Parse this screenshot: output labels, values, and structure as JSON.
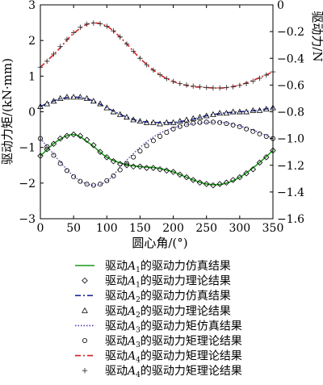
{
  "chart_data": {
    "type": "line",
    "xlabel": "圆心角/(°)",
    "ylabel_left": "驱动力矩/(kN·mm)",
    "ylabel_right": "驱动力/N",
    "xlim": [
      0,
      350
    ],
    "ylim_left": [
      -3,
      3
    ],
    "ylim_right": [
      -1.6,
      0
    ],
    "xticks": [
      "0",
      "50",
      "100",
      "150",
      "200",
      "250",
      "300",
      "350"
    ],
    "yticks_left": [
      "−3",
      "−2",
      "−1",
      "0",
      "1",
      "2",
      "3"
    ],
    "yticks_right": [
      "−1.6",
      "−1.4",
      "−1.2",
      "−1.0",
      "−0.8",
      "−0.6",
      "−0.4",
      "−0.2",
      "0"
    ],
    "grid": false,
    "legend_position": "below",
    "series": [
      {
        "name_prefix": "驱动",
        "name_var": "A",
        "name_sub": "1",
        "name_suffix": "的驱动力仿真结果",
        "axis": "right",
        "style": "line",
        "color": "#1a9a1a",
        "marker": "none",
        "x": [
          0,
          25,
          50,
          75,
          100,
          125,
          150,
          175,
          200,
          225,
          250,
          275,
          300,
          325,
          350
        ],
        "y": [
          -1.13,
          -1.02,
          -0.97,
          -1.04,
          -1.14,
          -1.19,
          -1.21,
          -1.22,
          -1.25,
          -1.3,
          -1.34,
          -1.34,
          -1.29,
          -1.2,
          -1.09
        ]
      },
      {
        "name_prefix": "驱动",
        "name_var": "A",
        "name_sub": "1",
        "name_suffix": "的驱动力理论结果",
        "axis": "right",
        "style": "markers",
        "color": "#000000",
        "marker": "diamond",
        "x": [
          0,
          10,
          20,
          30,
          40,
          50,
          60,
          70,
          80,
          90,
          100,
          110,
          120,
          130,
          140,
          150,
          160,
          170,
          180,
          190,
          200,
          210,
          220,
          230,
          240,
          250,
          260,
          270,
          280,
          290,
          300,
          310,
          320,
          330,
          340,
          350
        ],
        "y": [
          -1.13,
          -1.08,
          -1.04,
          -1.0,
          -0.98,
          -0.97,
          -0.98,
          -1.01,
          -1.05,
          -1.1,
          -1.14,
          -1.17,
          -1.19,
          -1.2,
          -1.21,
          -1.21,
          -1.22,
          -1.22,
          -1.23,
          -1.24,
          -1.25,
          -1.27,
          -1.29,
          -1.31,
          -1.33,
          -1.34,
          -1.35,
          -1.34,
          -1.33,
          -1.31,
          -1.29,
          -1.26,
          -1.23,
          -1.18,
          -1.14,
          -1.09
        ]
      },
      {
        "name_prefix": "驱动",
        "name_var": "A",
        "name_sub": "2",
        "name_suffix": "的驱动力仿真结果",
        "axis": "right",
        "style": "dashdot",
        "color": "#1f2a9a",
        "marker": "none",
        "x": [
          0,
          25,
          50,
          75,
          100,
          125,
          150,
          175,
          200,
          225,
          250,
          275,
          300,
          325,
          350
        ],
        "y": [
          -0.76,
          -0.71,
          -0.69,
          -0.71,
          -0.77,
          -0.83,
          -0.87,
          -0.88,
          -0.88,
          -0.86,
          -0.83,
          -0.81,
          -0.8,
          -0.79,
          -0.77
        ]
      },
      {
        "name_prefix": "驱动",
        "name_var": "A",
        "name_sub": "2",
        "name_suffix": "的驱动力理论结果",
        "axis": "right",
        "style": "markers",
        "color": "#000000",
        "marker": "triangle",
        "x": [
          0,
          10,
          20,
          30,
          40,
          50,
          60,
          70,
          80,
          90,
          100,
          110,
          120,
          130,
          140,
          150,
          160,
          170,
          180,
          190,
          200,
          210,
          220,
          230,
          240,
          250,
          260,
          270,
          280,
          290,
          300,
          310,
          320,
          330,
          340,
          350
        ],
        "y": [
          -0.76,
          -0.74,
          -0.72,
          -0.7,
          -0.69,
          -0.69,
          -0.69,
          -0.7,
          -0.72,
          -0.74,
          -0.77,
          -0.8,
          -0.82,
          -0.84,
          -0.86,
          -0.87,
          -0.88,
          -0.88,
          -0.89,
          -0.88,
          -0.88,
          -0.87,
          -0.86,
          -0.85,
          -0.84,
          -0.83,
          -0.82,
          -0.81,
          -0.81,
          -0.8,
          -0.8,
          -0.8,
          -0.79,
          -0.79,
          -0.78,
          -0.77
        ]
      },
      {
        "name_prefix": "驱动",
        "name_var": "A",
        "name_sub": "3",
        "name_suffix": "的驱动力矩仿真结果",
        "axis": "left",
        "style": "dotted",
        "color": "#5a3aa8",
        "marker": "none",
        "x": [
          0,
          25,
          50,
          75,
          100,
          125,
          150,
          175,
          200,
          225,
          250,
          275,
          300,
          325,
          350
        ],
        "y": [
          -0.75,
          -1.3,
          -1.8,
          -2.05,
          -1.95,
          -1.45,
          -1.0,
          -0.65,
          -0.45,
          -0.35,
          -0.3,
          -0.3,
          -0.4,
          -0.55,
          -0.75
        ]
      },
      {
        "name_prefix": "驱动",
        "name_var": "A",
        "name_sub": "3",
        "name_suffix": "的驱动力矩理论结果",
        "axis": "left",
        "style": "markers",
        "color": "#000000",
        "marker": "circle",
        "x": [
          0,
          10,
          20,
          30,
          40,
          50,
          60,
          70,
          80,
          90,
          100,
          110,
          120,
          130,
          140,
          150,
          160,
          170,
          180,
          190,
          200,
          210,
          220,
          230,
          240,
          250,
          260,
          270,
          280,
          290,
          300,
          310,
          320,
          330,
          340,
          350
        ],
        "y": [
          -0.75,
          -0.98,
          -1.22,
          -1.45,
          -1.65,
          -1.82,
          -1.95,
          -2.03,
          -2.06,
          -2.03,
          -1.93,
          -1.8,
          -1.63,
          -1.45,
          -1.27,
          -1.1,
          -0.95,
          -0.81,
          -0.69,
          -0.58,
          -0.48,
          -0.41,
          -0.36,
          -0.32,
          -0.3,
          -0.29,
          -0.29,
          -0.3,
          -0.33,
          -0.37,
          -0.42,
          -0.48,
          -0.55,
          -0.62,
          -0.69,
          -0.75
        ]
      },
      {
        "name_prefix": "驱动",
        "name_var": "A",
        "name_sub": "4",
        "name_suffix": "的驱动力矩理论结果",
        "axis": "left",
        "style": "dashdot",
        "color": "#d42020",
        "marker": "none",
        "x": [
          0,
          25,
          50,
          75,
          100,
          125,
          150,
          175,
          200,
          225,
          250,
          275,
          300,
          325,
          350
        ],
        "y": [
          1.25,
          1.7,
          2.2,
          2.48,
          2.4,
          2.0,
          1.5,
          1.1,
          0.85,
          0.72,
          0.68,
          0.67,
          0.75,
          0.92,
          1.12
        ]
      },
      {
        "name_prefix": "驱动",
        "name_var": "A",
        "name_sub": "4",
        "name_suffix": "的驱动力矩理论结果",
        "axis": "left",
        "style": "markers",
        "color": "#333333",
        "marker": "plus",
        "x": [
          0,
          10,
          20,
          30,
          40,
          50,
          60,
          70,
          80,
          90,
          100,
          110,
          120,
          130,
          140,
          150,
          160,
          170,
          180,
          190,
          200,
          210,
          220,
          230,
          240,
          250,
          260,
          270,
          280,
          290,
          300,
          310,
          320,
          330,
          340,
          350
        ],
        "y": [
          1.25,
          1.42,
          1.62,
          1.83,
          2.03,
          2.22,
          2.37,
          2.46,
          2.49,
          2.47,
          2.4,
          2.27,
          2.1,
          1.9,
          1.7,
          1.5,
          1.32,
          1.17,
          1.04,
          0.93,
          0.85,
          0.79,
          0.75,
          0.72,
          0.7,
          0.68,
          0.67,
          0.67,
          0.68,
          0.7,
          0.74,
          0.79,
          0.86,
          0.94,
          1.03,
          1.12
        ]
      }
    ]
  }
}
